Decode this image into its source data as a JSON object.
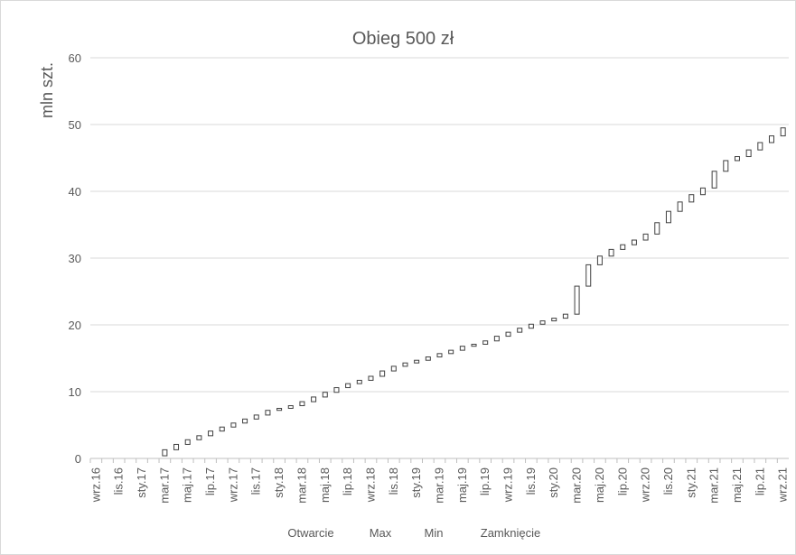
{
  "chart_data": {
    "type": "candlestick",
    "title": "Obieg 500 zł",
    "y_label": "mln szt.",
    "categories": [
      "wrz.16",
      null,
      "lis.16",
      null,
      "sty.17",
      null,
      "mar.17",
      null,
      "maj.17",
      null,
      "lip.17",
      null,
      "wrz.17",
      null,
      "lis.17",
      null,
      "sty.18",
      null,
      "mar.18",
      null,
      "maj.18",
      null,
      "lip.18",
      null,
      "wrz.18",
      null,
      "lis.18",
      null,
      "sty.19",
      null,
      "mar.19",
      null,
      "maj.19",
      null,
      "lip.19",
      null,
      "wrz.19",
      null,
      "lis.19",
      null,
      "sty.20",
      null,
      "mar.20",
      null,
      "maj.20",
      null,
      "lip.20",
      null,
      "wrz.20",
      null,
      "lis.20",
      null,
      "sty.21",
      null,
      "mar.21",
      null,
      "maj.21",
      null,
      "lip.21",
      null,
      "wrz.21"
    ],
    "series": [
      {
        "name": "Otwarcie",
        "values": [
          0,
          0,
          0,
          0,
          0,
          0,
          0.4,
          1.3,
          2.1,
          2.8,
          3.4,
          4.1,
          4.7,
          5.3,
          5.9,
          6.5,
          7.2,
          7.5,
          7.9,
          8.5,
          9.2,
          9.9,
          10.6,
          11.2,
          11.7,
          12.3,
          13.1,
          13.8,
          14.3,
          14.7,
          15.2,
          15.7,
          16.2,
          16.8,
          17.1,
          17.6,
          18.3,
          18.9,
          19.5,
          20.1,
          20.6,
          21.0,
          21.6,
          25.8,
          29.0,
          30.3,
          31.3,
          32.0,
          32.7,
          33.6,
          35.3,
          37.0,
          38.4,
          39.5,
          40.5,
          43.0,
          44.6,
          45.2,
          46.2,
          47.3,
          48.3
        ]
      },
      {
        "name": "Max",
        "values": [
          0,
          0,
          0,
          0,
          0,
          0,
          1.3,
          2.1,
          2.8,
          3.4,
          4.1,
          4.7,
          5.3,
          5.9,
          6.5,
          7.2,
          7.5,
          7.9,
          8.5,
          9.2,
          9.9,
          10.6,
          11.2,
          11.7,
          12.3,
          13.1,
          13.8,
          14.3,
          14.7,
          15.2,
          15.7,
          16.2,
          16.8,
          17.1,
          17.6,
          18.3,
          18.9,
          19.5,
          20.1,
          20.6,
          21.0,
          21.6,
          25.8,
          29.0,
          30.3,
          31.3,
          32.0,
          32.7,
          33.6,
          35.3,
          37.0,
          38.4,
          39.5,
          40.5,
          43.0,
          44.6,
          45.2,
          46.2,
          47.3,
          48.3,
          49.5
        ]
      },
      {
        "name": "Min",
        "values": [
          0,
          0,
          0,
          0,
          0,
          0,
          0.4,
          1.3,
          2.1,
          2.8,
          3.4,
          4.1,
          4.7,
          5.3,
          5.9,
          6.5,
          7.2,
          7.5,
          7.9,
          8.5,
          9.2,
          9.9,
          10.6,
          11.2,
          11.7,
          12.3,
          13.1,
          13.8,
          14.3,
          14.7,
          15.2,
          15.7,
          16.2,
          16.8,
          17.1,
          17.6,
          18.3,
          18.9,
          19.5,
          20.1,
          20.6,
          21.0,
          21.6,
          25.8,
          29.0,
          30.3,
          31.3,
          32.0,
          32.7,
          33.6,
          35.3,
          37.0,
          38.4,
          39.5,
          40.5,
          43.0,
          44.6,
          45.2,
          46.2,
          47.3,
          48.3
        ]
      },
      {
        "name": "Zamknięcie",
        "values": [
          0,
          0,
          0,
          0,
          0,
          0,
          1.3,
          2.1,
          2.8,
          3.4,
          4.1,
          4.7,
          5.3,
          5.9,
          6.5,
          7.2,
          7.5,
          7.9,
          8.5,
          9.2,
          9.9,
          10.6,
          11.2,
          11.7,
          12.3,
          13.1,
          13.8,
          14.3,
          14.7,
          15.2,
          15.7,
          16.2,
          16.8,
          17.1,
          17.6,
          18.3,
          18.9,
          19.5,
          20.1,
          20.6,
          21.0,
          21.6,
          25.8,
          29.0,
          30.3,
          31.3,
          32.0,
          32.7,
          33.6,
          35.3,
          37.0,
          38.4,
          39.5,
          40.5,
          43.0,
          44.6,
          45.2,
          46.2,
          47.3,
          48.3,
          49.5
        ]
      }
    ],
    "ylim": [
      0,
      60
    ],
    "yticks": [
      0,
      10,
      20,
      30,
      40,
      50,
      60
    ],
    "grid": true,
    "legend": "bottom"
  }
}
